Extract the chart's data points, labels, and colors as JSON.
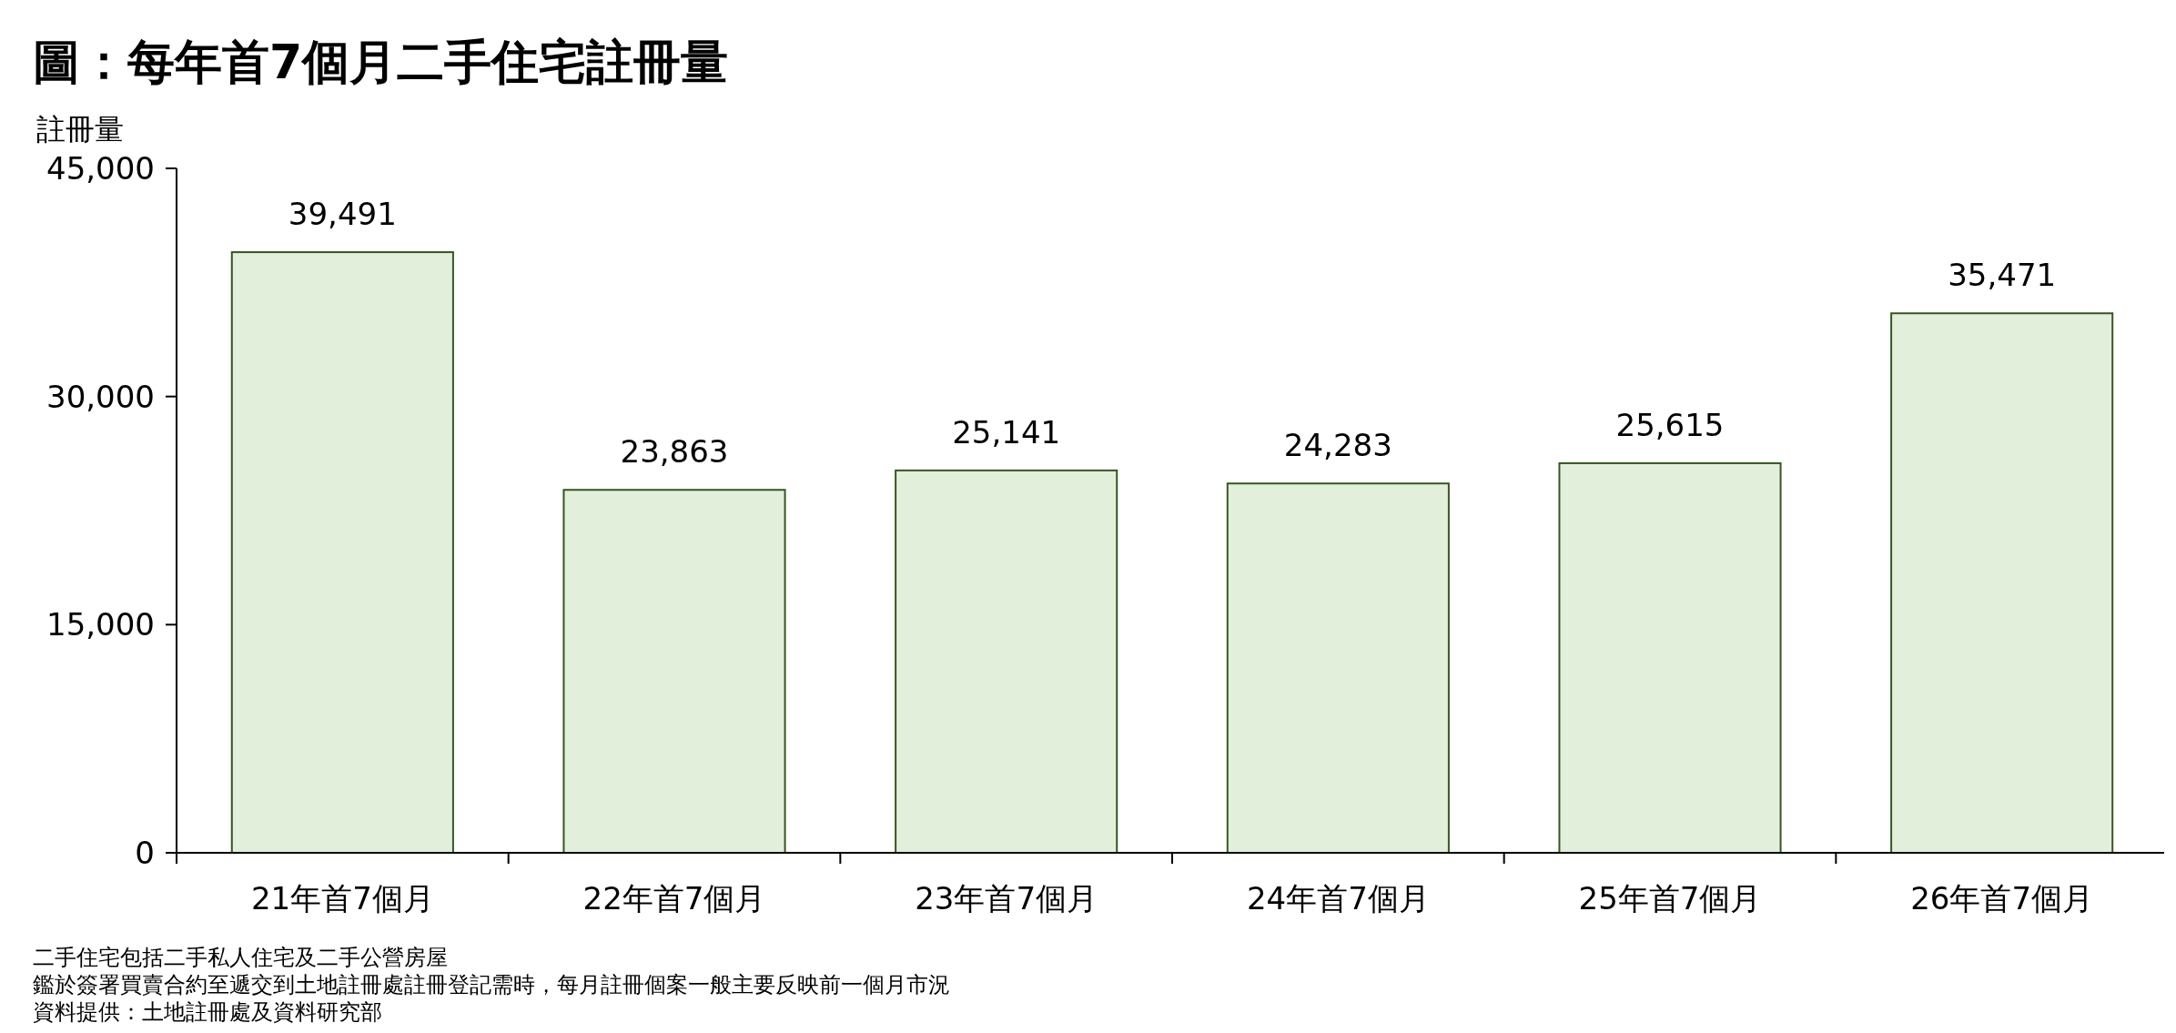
{
  "chart_data": {
    "type": "bar",
    "title": "圖：每年首7個月二手住宅註冊量",
    "ylabel": "註冊量",
    "categories": [
      "21年首7個月",
      "22年首7個月",
      "23年首7個月",
      "24年首7個月",
      "25年首7個月",
      "26年首7個月"
    ],
    "values": [
      39491,
      23863,
      25141,
      24283,
      25615,
      35471
    ],
    "color": "#e2efda",
    "ylim": [
      0,
      45000
    ],
    "yticks": [
      {
        "value": 0,
        "label": "0"
      },
      {
        "value": 15000,
        "label": "15,000"
      },
      {
        "value": 30000,
        "label": "30,000"
      },
      {
        "value": 45000,
        "label": "45,000"
      }
    ],
    "value_labels": [
      "39,491",
      "23,863",
      "25,141",
      "24,283",
      "25,615",
      "35,471"
    ],
    "grid": false,
    "annotations": [
      "二手住宅包括二手私人住宅及二手公營房屋",
      "鑑於簽署買賣合約至遞交到土地註冊處註冊登記需時，每月註冊個案一般主要反映前一個月市況",
      "資料提供：土地註冊處及資料研究部"
    ]
  }
}
